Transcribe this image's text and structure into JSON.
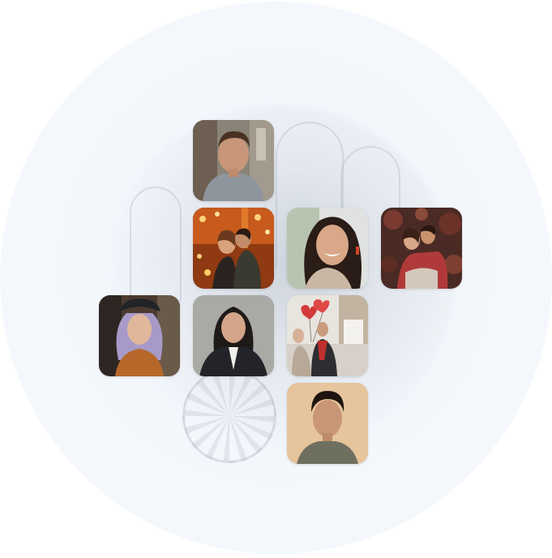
{
  "photo_grid": {
    "tiles": [
      {
        "subject": "man-portrait-street"
      },
      {
        "subject": "couple-kissing-lights"
      },
      {
        "subject": "smiling-woman-earrings"
      },
      {
        "subject": "couple-hugging-flowers"
      },
      {
        "subject": "woman-purple-hair-hat"
      },
      {
        "subject": "woman-blazer-portrait"
      },
      {
        "subject": "couple-heart-balloons"
      },
      {
        "subject": "young-man-portrait"
      }
    ]
  },
  "colors": {
    "background_circle": "#f4f8fd",
    "tile_radius_color": "#ffffff"
  }
}
